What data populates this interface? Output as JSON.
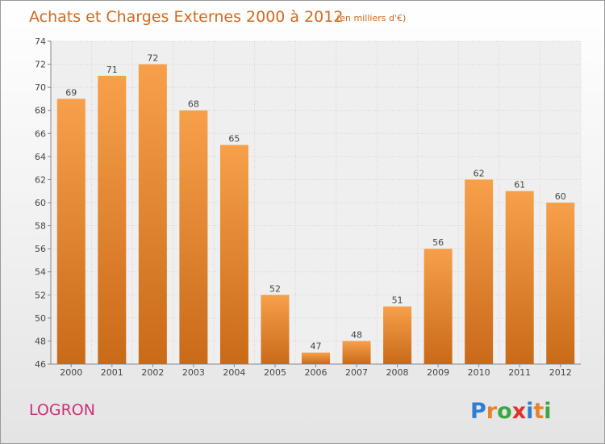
{
  "title": "Achats et Charges Externes 2000 à 2012",
  "subtitle": "(en milliers d'€)",
  "place_name": "LOGRON",
  "brand": {
    "letters": [
      "P",
      "r",
      "o",
      "x",
      "i",
      "t",
      "i"
    ],
    "colors": [
      "#2e7fd1",
      "#e8832a",
      "#3aa644",
      "#e0322d",
      "#2e7fd1",
      "#e8832a",
      "#3aa644"
    ]
  },
  "chart_data": {
    "type": "bar",
    "title": "Achats et Charges Externes 2000 à 2012",
    "subtitle": "(en milliers d'€)",
    "categories": [
      "2000",
      "2001",
      "2002",
      "2003",
      "2004",
      "2005",
      "2006",
      "2007",
      "2008",
      "2009",
      "2010",
      "2011",
      "2012"
    ],
    "values": [
      69,
      71,
      72,
      68,
      65,
      52,
      47,
      48,
      51,
      56,
      62,
      61,
      60
    ],
    "ylim": [
      46,
      74
    ],
    "yticks": [
      46,
      48,
      50,
      52,
      54,
      56,
      58,
      60,
      62,
      64,
      66,
      68,
      70,
      72,
      74
    ],
    "grid": true,
    "bar_color_light": "#f7a04a",
    "bar_color_dark": "#c96a18"
  }
}
